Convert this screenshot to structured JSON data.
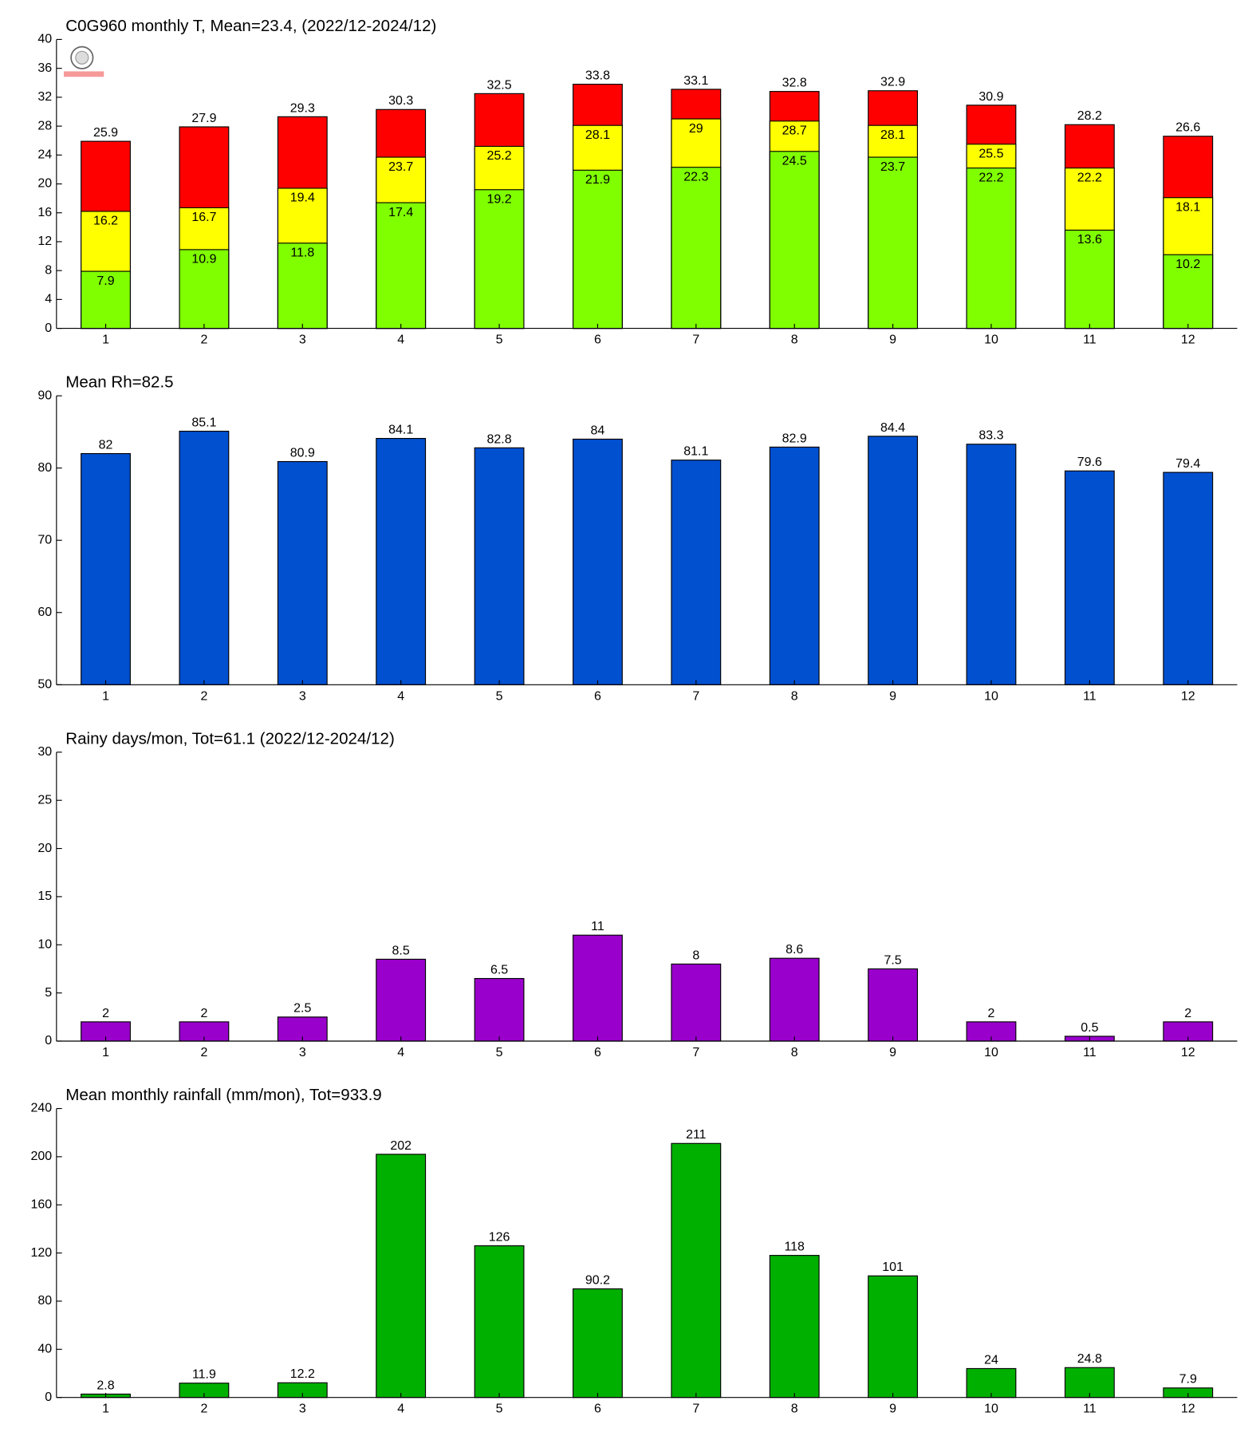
{
  "chart_data": [
    {
      "type": "bar",
      "title": "C0G960 monthly T, Mean=23.4, (2022/12-2024/12)",
      "categories": [
        "1",
        "2",
        "3",
        "4",
        "5",
        "6",
        "7",
        "8",
        "9",
        "10",
        "11",
        "12"
      ],
      "series": [
        {
          "color": "#ff0000",
          "values": [
            25.9,
            27.9,
            29.3,
            30.3,
            32.5,
            33.8,
            33.1,
            32.8,
            32.9,
            30.9,
            28.2,
            26.6
          ]
        },
        {
          "color": "#ffff00",
          "values": [
            16.2,
            16.7,
            19.4,
            23.7,
            25.2,
            28.1,
            29,
            28.7,
            28.1,
            25.5,
            22.2,
            18.1
          ]
        },
        {
          "color": "#80ff00",
          "values": [
            7.9,
            10.9,
            11.8,
            17.4,
            19.2,
            21.9,
            22.3,
            24.5,
            23.7,
            22.2,
            13.6,
            10.2
          ]
        }
      ],
      "ylim": [
        0,
        40
      ],
      "yticks": [
        0,
        4,
        8,
        12,
        16,
        20,
        24,
        28,
        32,
        36,
        40
      ]
    },
    {
      "type": "bar",
      "title": "Mean Rh=82.5",
      "categories": [
        "1",
        "2",
        "3",
        "4",
        "5",
        "6",
        "7",
        "8",
        "9",
        "10",
        "11",
        "12"
      ],
      "series": [
        {
          "color": "#0050d0",
          "values": [
            82,
            85.1,
            80.9,
            84.1,
            82.8,
            84,
            81.1,
            82.9,
            84.4,
            83.3,
            79.6,
            79.4
          ]
        }
      ],
      "ylim": [
        50,
        90
      ],
      "yticks": [
        50,
        60,
        70,
        80,
        90
      ]
    },
    {
      "type": "bar",
      "title": "Rainy days/mon, Tot=61.1 (2022/12-2024/12)",
      "categories": [
        "1",
        "2",
        "3",
        "4",
        "5",
        "6",
        "7",
        "8",
        "9",
        "10",
        "11",
        "12"
      ],
      "series": [
        {
          "color": "#9900cc",
          "values": [
            2,
            2,
            2.5,
            8.5,
            6.5,
            11,
            8,
            8.6,
            7.5,
            2,
            0.5,
            2
          ]
        }
      ],
      "ylim": [
        0,
        30
      ],
      "yticks": [
        0,
        5,
        10,
        15,
        20,
        25,
        30
      ]
    },
    {
      "type": "bar",
      "title": "Mean monthly rainfall (mm/mon), Tot=933.9",
      "categories": [
        "1",
        "2",
        "3",
        "4",
        "5",
        "6",
        "7",
        "8",
        "9",
        "10",
        "11",
        "12"
      ],
      "series": [
        {
          "color": "#00b000",
          "values": [
            2.8,
            11.9,
            12.2,
            202,
            126,
            90.2,
            211,
            118,
            101,
            24,
            24.8,
            7.9
          ]
        }
      ],
      "ylim": [
        0,
        240
      ],
      "yticks": [
        0,
        40,
        80,
        120,
        160,
        200,
        240
      ]
    }
  ]
}
